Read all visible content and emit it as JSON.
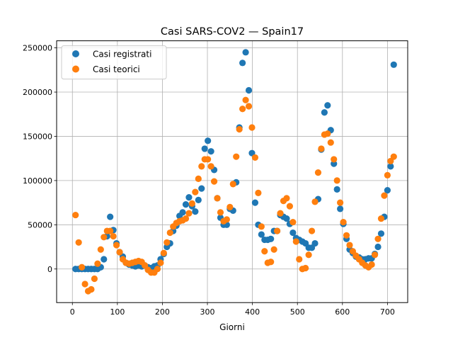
{
  "chart_data": {
    "type": "scatter",
    "title": "Casi SARS-COV2 — Spain17",
    "xlabel": "Giorni",
    "ylabel": "",
    "xlim": [
      -35,
      745
    ],
    "ylim": [
      -38000,
      258000
    ],
    "xticks": [
      0,
      100,
      200,
      300,
      400,
      500,
      600,
      700
    ],
    "yticks": [
      0,
      50000,
      100000,
      150000,
      200000,
      250000
    ],
    "grid": true,
    "legend_position": "top-left",
    "series": [
      {
        "name": "Casi registrati",
        "color": "#1f77b4",
        "points": [
          [
            7,
            0
          ],
          [
            14,
            0
          ],
          [
            21,
            0
          ],
          [
            28,
            0
          ],
          [
            35,
            0
          ],
          [
            42,
            0
          ],
          [
            49,
            0
          ],
          [
            56,
            0
          ],
          [
            63,
            2000
          ],
          [
            70,
            11000
          ],
          [
            77,
            37000
          ],
          [
            84,
            59000
          ],
          [
            91,
            44000
          ],
          [
            98,
            29000
          ],
          [
            105,
            19000
          ],
          [
            112,
            14000
          ],
          [
            119,
            7000
          ],
          [
            126,
            5000
          ],
          [
            133,
            4000
          ],
          [
            140,
            3000
          ],
          [
            147,
            4000
          ],
          [
            154,
            3000
          ],
          [
            161,
            4000
          ],
          [
            168,
            2000
          ],
          [
            175,
            1000
          ],
          [
            182,
            3000
          ],
          [
            189,
            4000
          ],
          [
            196,
            11000
          ],
          [
            203,
            17000
          ],
          [
            210,
            25000
          ],
          [
            217,
            29000
          ],
          [
            224,
            43000
          ],
          [
            231,
            49000
          ],
          [
            238,
            60000
          ],
          [
            245,
            64000
          ],
          [
            252,
            73000
          ],
          [
            259,
            81000
          ],
          [
            266,
            71000
          ],
          [
            273,
            65000
          ],
          [
            280,
            78000
          ],
          [
            287,
            91000
          ],
          [
            294,
            136000
          ],
          [
            301,
            145000
          ],
          [
            308,
            133000
          ],
          [
            315,
            112000
          ],
          [
            322,
            80000
          ],
          [
            329,
            58000
          ],
          [
            336,
            50000
          ],
          [
            343,
            50000
          ],
          [
            350,
            68000
          ],
          [
            357,
            66000
          ],
          [
            364,
            98000
          ],
          [
            371,
            160000
          ],
          [
            378,
            233000
          ],
          [
            385,
            245000
          ],
          [
            392,
            202000
          ],
          [
            399,
            131000
          ],
          [
            406,
            75000
          ],
          [
            413,
            50000
          ],
          [
            420,
            39000
          ],
          [
            427,
            33000
          ],
          [
            434,
            33000
          ],
          [
            441,
            34000
          ],
          [
            448,
            43000
          ],
          [
            455,
            43000
          ],
          [
            462,
            61000
          ],
          [
            469,
            59000
          ],
          [
            476,
            57000
          ],
          [
            483,
            51000
          ],
          [
            490,
            41000
          ],
          [
            497,
            35000
          ],
          [
            504,
            33000
          ],
          [
            511,
            31000
          ],
          [
            518,
            29000
          ],
          [
            525,
            24000
          ],
          [
            532,
            24000
          ],
          [
            539,
            29000
          ],
          [
            546,
            79000
          ],
          [
            553,
            135000
          ],
          [
            560,
            177000
          ],
          [
            567,
            185000
          ],
          [
            574,
            157000
          ],
          [
            581,
            119000
          ],
          [
            588,
            90000
          ],
          [
            595,
            68000
          ],
          [
            602,
            51000
          ],
          [
            609,
            34000
          ],
          [
            616,
            22000
          ],
          [
            623,
            18000
          ],
          [
            630,
            14000
          ],
          [
            637,
            13000
          ],
          [
            644,
            11000
          ],
          [
            651,
            11000
          ],
          [
            658,
            12000
          ],
          [
            665,
            12000
          ],
          [
            672,
            17000
          ],
          [
            679,
            25000
          ],
          [
            686,
            40000
          ],
          [
            693,
            59000
          ],
          [
            700,
            89000
          ],
          [
            707,
            116000
          ],
          [
            714,
            231000
          ]
        ]
      },
      {
        "name": "Casi teorici",
        "color": "#ff7f0e",
        "points": [
          [
            7,
            61000
          ],
          [
            14,
            30000
          ],
          [
            21,
            2000
          ],
          [
            28,
            -17000
          ],
          [
            35,
            -25000
          ],
          [
            42,
            -23000
          ],
          [
            49,
            -11000
          ],
          [
            56,
            6000
          ],
          [
            63,
            22000
          ],
          [
            70,
            36000
          ],
          [
            77,
            43000
          ],
          [
            84,
            43000
          ],
          [
            91,
            37000
          ],
          [
            98,
            27000
          ],
          [
            105,
            19000
          ],
          [
            112,
            11000
          ],
          [
            119,
            7000
          ],
          [
            126,
            6000
          ],
          [
            133,
            7000
          ],
          [
            140,
            8000
          ],
          [
            147,
            9000
          ],
          [
            154,
            8000
          ],
          [
            161,
            4000
          ],
          [
            168,
            -1000
          ],
          [
            175,
            -4000
          ],
          [
            182,
            -4000
          ],
          [
            189,
            0
          ],
          [
            196,
            7000
          ],
          [
            203,
            18000
          ],
          [
            210,
            30000
          ],
          [
            217,
            41000
          ],
          [
            224,
            48000
          ],
          [
            231,
            52000
          ],
          [
            238,
            54000
          ],
          [
            245,
            55000
          ],
          [
            252,
            57000
          ],
          [
            259,
            63000
          ],
          [
            266,
            74000
          ],
          [
            273,
            87000
          ],
          [
            280,
            102000
          ],
          [
            287,
            116000
          ],
          [
            294,
            124000
          ],
          [
            301,
            124000
          ],
          [
            308,
            116000
          ],
          [
            315,
            99000
          ],
          [
            322,
            80000
          ],
          [
            329,
            64000
          ],
          [
            336,
            54000
          ],
          [
            343,
            56000
          ],
          [
            350,
            70000
          ],
          [
            357,
            96000
          ],
          [
            364,
            127000
          ],
          [
            371,
            158000
          ],
          [
            378,
            181000
          ],
          [
            385,
            191000
          ],
          [
            392,
            184000
          ],
          [
            399,
            160000
          ],
          [
            406,
            126000
          ],
          [
            413,
            86000
          ],
          [
            420,
            48000
          ],
          [
            427,
            20000
          ],
          [
            434,
            7000
          ],
          [
            441,
            8000
          ],
          [
            448,
            22000
          ],
          [
            455,
            43000
          ],
          [
            462,
            63000
          ],
          [
            469,
            77000
          ],
          [
            476,
            80000
          ],
          [
            483,
            71000
          ],
          [
            490,
            53000
          ],
          [
            497,
            31000
          ],
          [
            504,
            11000
          ],
          [
            511,
            0
          ],
          [
            518,
            1000
          ],
          [
            525,
            16000
          ],
          [
            532,
            43000
          ],
          [
            539,
            76000
          ],
          [
            546,
            109000
          ],
          [
            553,
            136000
          ],
          [
            560,
            152000
          ],
          [
            567,
            153000
          ],
          [
            574,
            143000
          ],
          [
            581,
            124000
          ],
          [
            588,
            100000
          ],
          [
            595,
            75000
          ],
          [
            602,
            53000
          ],
          [
            609,
            38000
          ],
          [
            616,
            27000
          ],
          [
            623,
            20000
          ],
          [
            630,
            15000
          ],
          [
            637,
            11000
          ],
          [
            644,
            7000
          ],
          [
            651,
            4000
          ],
          [
            658,
            2000
          ],
          [
            665,
            5000
          ],
          [
            672,
            16000
          ],
          [
            679,
            34000
          ],
          [
            686,
            57000
          ],
          [
            693,
            83000
          ],
          [
            700,
            106000
          ],
          [
            707,
            122000
          ],
          [
            714,
            127000
          ]
        ]
      }
    ]
  }
}
